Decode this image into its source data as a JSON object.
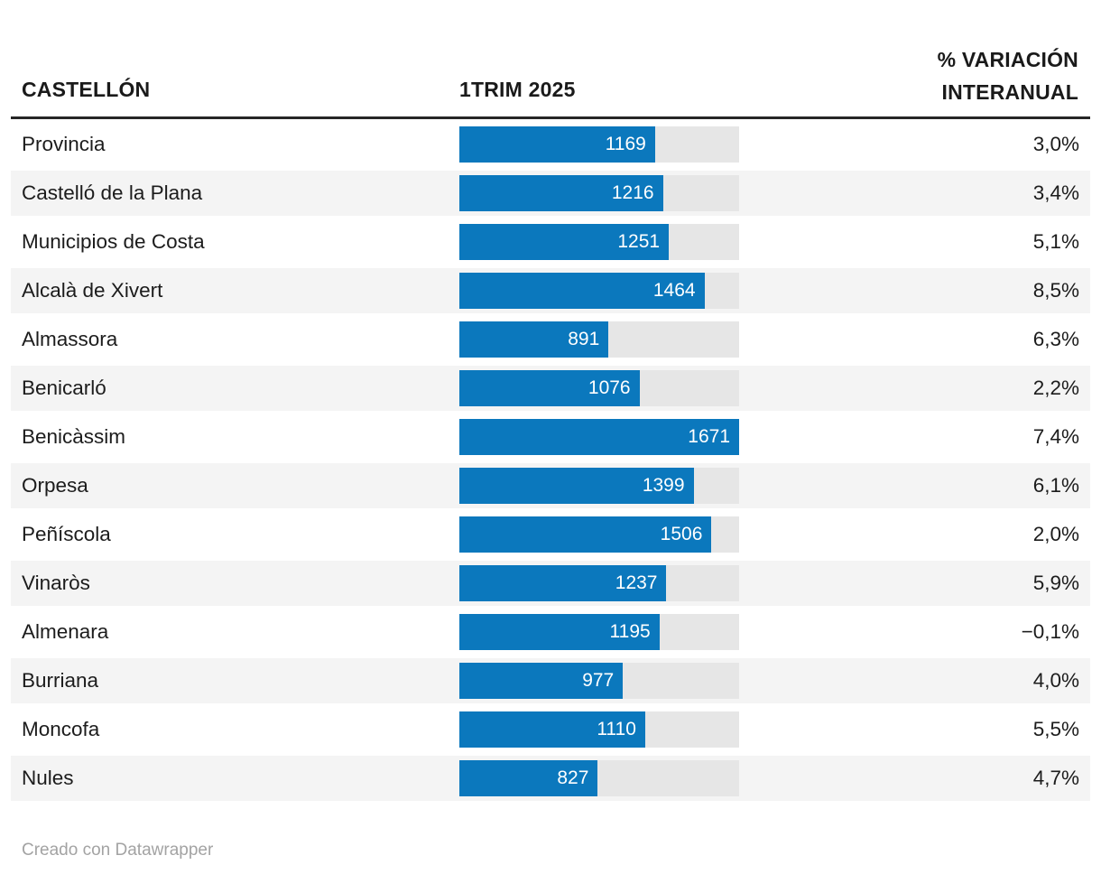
{
  "header": {
    "name_column": "CASTELLÓN",
    "bar_column": "1TRIM 2025",
    "variation_column_line1": "% VARIACIÓN",
    "variation_column_line2": "INTERANUAL"
  },
  "table": {
    "rows": [
      {
        "name": "Provincia",
        "value": 1169,
        "variation": "3,0%"
      },
      {
        "name": "Castelló de la Plana",
        "value": 1216,
        "variation": "3,4%"
      },
      {
        "name": "Municipios de Costa",
        "value": 1251,
        "variation": "5,1%"
      },
      {
        "name": "Alcalà de Xivert",
        "value": 1464,
        "variation": "8,5%"
      },
      {
        "name": "Almassora",
        "value": 891,
        "variation": "6,3%"
      },
      {
        "name": "Benicarló",
        "value": 1076,
        "variation": "2,2%"
      },
      {
        "name": "Benicàssim",
        "value": 1671,
        "variation": "7,4%"
      },
      {
        "name": "Orpesa",
        "value": 1399,
        "variation": "6,1%"
      },
      {
        "name": "Peñíscola",
        "value": 1506,
        "variation": "2,0%"
      },
      {
        "name": "Vinaròs",
        "value": 1237,
        "variation": "5,9%"
      },
      {
        "name": "Almenara",
        "value": 1195,
        "variation": "−0,1%"
      },
      {
        "name": "Burriana",
        "value": 977,
        "variation": "4,0%"
      },
      {
        "name": "Moncofa",
        "value": 1110,
        "variation": "5,5%"
      },
      {
        "name": "Nules",
        "value": 827,
        "variation": "4,7%"
      }
    ]
  },
  "footer": {
    "credit": "Creado con Datawrapper"
  },
  "colors": {
    "bar": "#0b78bd",
    "track": "#e6e6e6",
    "stripe": "#f4f4f4",
    "rule": "#262626"
  },
  "chart_data": {
    "type": "bar",
    "title": "CASTELLÓN",
    "categories": [
      "Provincia",
      "Castelló de la Plana",
      "Municipios de Costa",
      "Alcalà de Xivert",
      "Almassora",
      "Benicarló",
      "Benicàssim",
      "Orpesa",
      "Peñíscola",
      "Vinaròs",
      "Almenara",
      "Burriana",
      "Moncofa",
      "Nules"
    ],
    "series": [
      {
        "name": "1TRIM 2025",
        "values": [
          1169,
          1216,
          1251,
          1464,
          891,
          1076,
          1671,
          1399,
          1506,
          1237,
          1195,
          977,
          1110,
          827
        ]
      },
      {
        "name": "% VARIACIÓN INTERANUAL",
        "values": [
          "3,0%",
          "3,4%",
          "5,1%",
          "8,5%",
          "6,3%",
          "2,2%",
          "7,4%",
          "6,1%",
          "2,0%",
          "5,9%",
          "−0,1%",
          "4,0%",
          "5,5%",
          "4,7%"
        ]
      }
    ],
    "xlabel": "",
    "ylabel": "",
    "xlim": [
      0,
      1671
    ],
    "orientation": "horizontal",
    "grid": false,
    "legend_position": "none",
    "value_labels": "inside-bar-right",
    "footer": "Creado con Datawrapper"
  }
}
